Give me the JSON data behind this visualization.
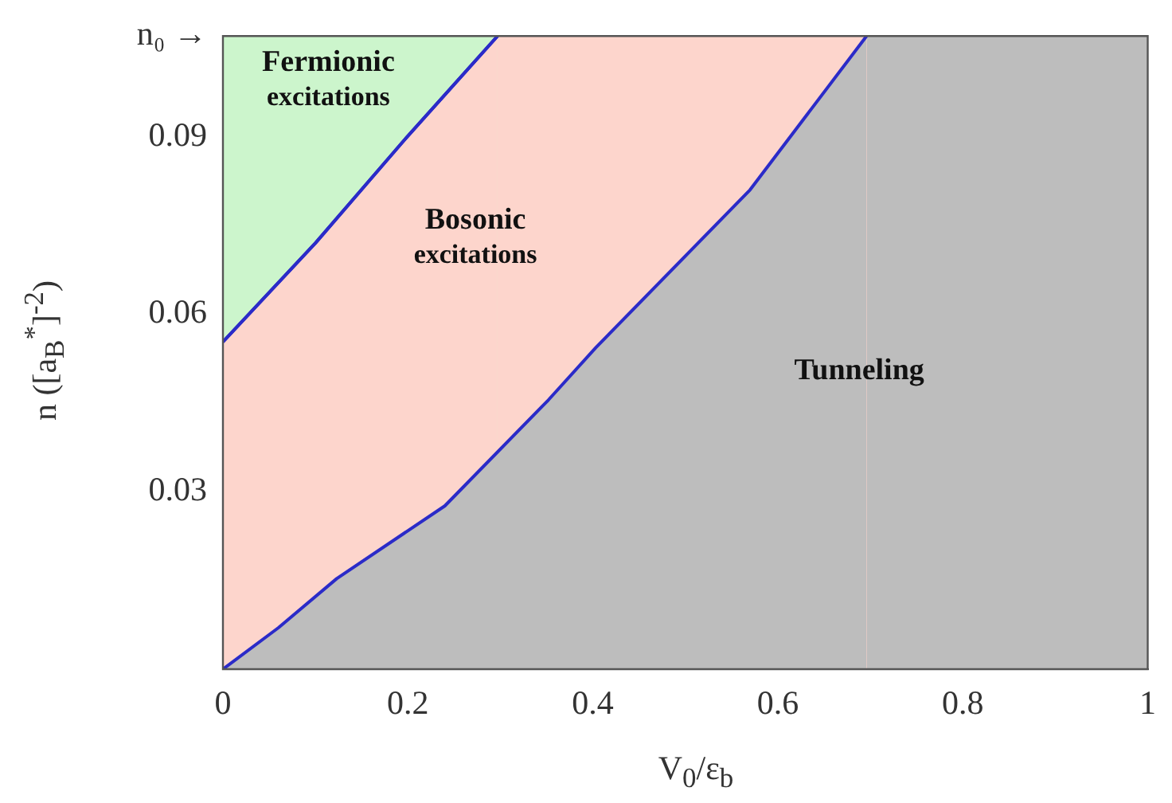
{
  "chart_data": {
    "type": "area",
    "xlabel": "V$_{0}$/ε$_{b}$",
    "ylabel": "n ([a$_{B}$$^{*}$]$^{-2}$)",
    "xlim": [
      0,
      1
    ],
    "xticks": [
      0,
      0.2,
      0.4,
      0.6,
      0.8,
      1
    ],
    "ylim": [
      0,
      0.107
    ],
    "yticks": [
      0.03,
      0.06,
      0.09,
      {
        "value": 0.107,
        "label": "n₀ →"
      }
    ],
    "series": [
      {
        "color": "#ccf5cc",
        "x": [
          0,
          1
        ],
        "values": [
          0.107,
          0.107
        ]
      },
      {
        "color": "#fdd5cc",
        "x": [
          0,
          0.1,
          0.196,
          0.297,
          1
        ],
        "values": [
          0.0553,
          0.072,
          0.0894,
          0.107,
          0.107
        ]
      },
      {
        "color": "#bdbdbd",
        "x": [
          0,
          0.06,
          0.123,
          0.24,
          0.352,
          0.403,
          0.57,
          0.696,
          1
        ],
        "values": [
          0,
          0.007,
          0.0153,
          0.0276,
          0.0455,
          0.0543,
          0.081,
          0.107,
          0.107
        ]
      },
      {
        "type": "line",
        "color": "#2b2bc8",
        "x": [
          0,
          0.1,
          0.196,
          0.297
        ],
        "values": [
          0.0553,
          0.072,
          0.0894,
          0.107
        ]
      }
    ],
    "annotations": [
      "Fermionic excitations",
      "Bosonic excitations",
      "Tunneling"
    ]
  }
}
